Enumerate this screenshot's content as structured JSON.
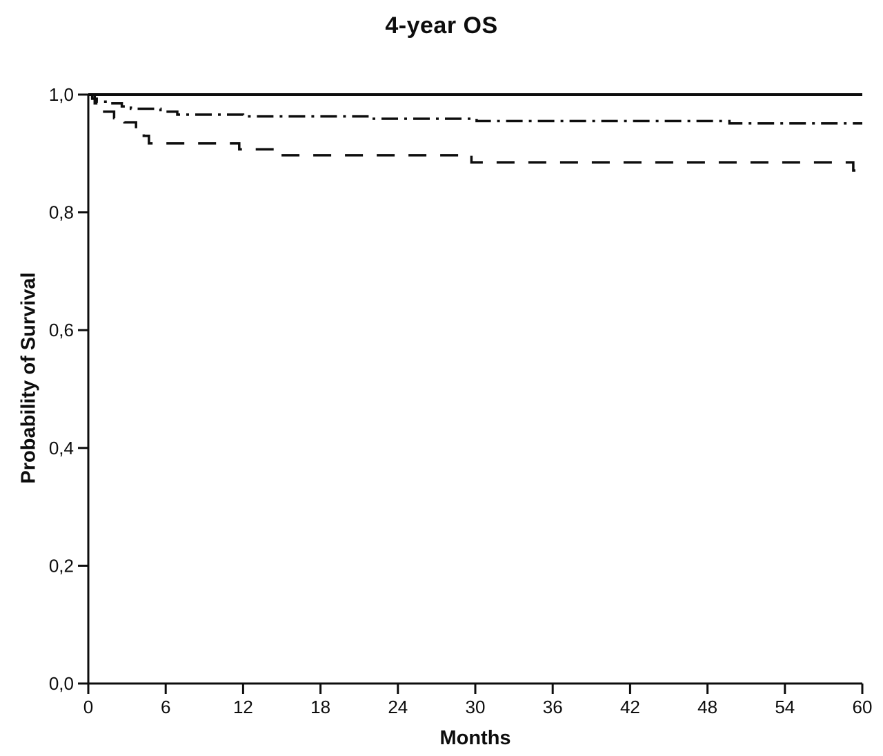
{
  "chart_data": {
    "type": "line",
    "subtype": "kaplan-meier-step",
    "title": "4-year OS",
    "xlabel": "Months",
    "ylabel": "Probability of Survival",
    "xlim": [
      0,
      60
    ],
    "ylim": [
      0.0,
      1.0
    ],
    "grid": false,
    "legend": "none",
    "x_ticks": [
      0,
      6,
      12,
      18,
      24,
      30,
      36,
      42,
      48,
      54,
      60
    ],
    "y_ticks": [
      0.0,
      0.2,
      0.4,
      0.6,
      0.8,
      1.0
    ],
    "y_tick_labels": [
      "0,0",
      "0,2",
      "0,4",
      "0,6",
      "0,8",
      "1,0"
    ],
    "x_tick_labels": [
      "0",
      "6",
      "12",
      "18",
      "24",
      "30",
      "36",
      "42",
      "48",
      "54",
      "60"
    ],
    "line_color": "#0d0d0d",
    "series": [
      {
        "name": "solid",
        "line_style": "solid",
        "end_t": 60,
        "points": [
          [
            0,
            1.0
          ]
        ]
      },
      {
        "name": "dash-dot",
        "line_style": "dash-dot",
        "end_t": 60,
        "points": [
          [
            0,
            1.0
          ],
          [
            0.3,
            0.993
          ],
          [
            0.65,
            0.988
          ],
          [
            1.5,
            0.985
          ],
          [
            2.6,
            0.98
          ],
          [
            3.3,
            0.976
          ],
          [
            5.6,
            0.971
          ],
          [
            6.9,
            0.966
          ],
          [
            12,
            0.963
          ],
          [
            21.8,
            0.959
          ],
          [
            30.1,
            0.955
          ],
          [
            49.7,
            0.951
          ]
        ]
      },
      {
        "name": "dashed",
        "line_style": "dashed",
        "end_t": 59.6,
        "points": [
          [
            0,
            1.0
          ],
          [
            0.5,
            0.985
          ],
          [
            1.0,
            0.971
          ],
          [
            2.0,
            0.96
          ],
          [
            2.8,
            0.953
          ],
          [
            3.7,
            0.942
          ],
          [
            4.3,
            0.93
          ],
          [
            4.7,
            0.917
          ],
          [
            11.7,
            0.907
          ],
          [
            14.8,
            0.897
          ],
          [
            29.7,
            0.885
          ],
          [
            59.3,
            0.871
          ]
        ]
      }
    ]
  }
}
